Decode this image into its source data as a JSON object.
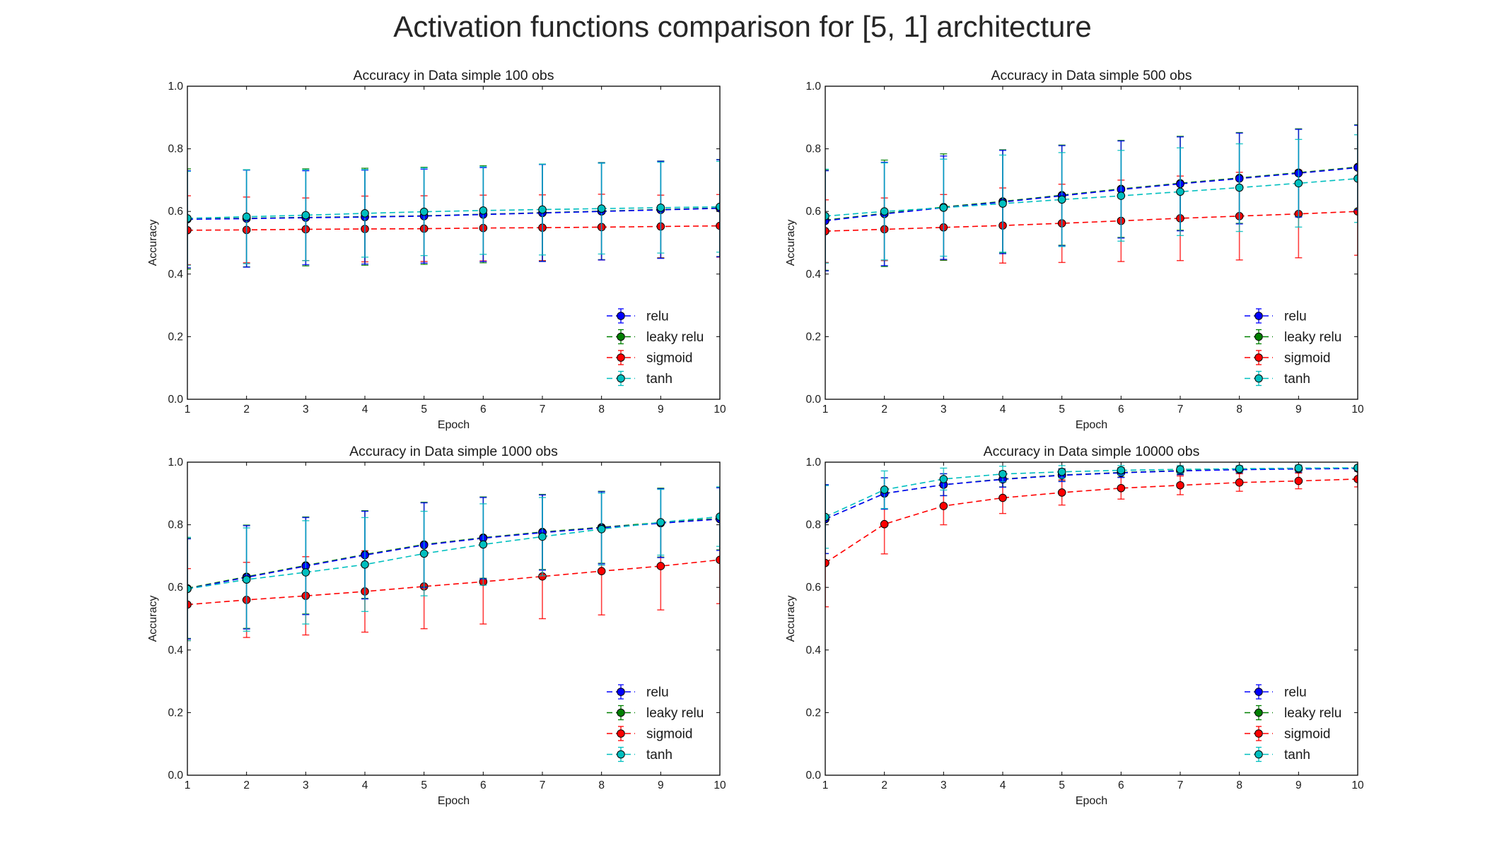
{
  "figure_title": "Activation functions comparison for [5, 1] architecture",
  "chart_data": [
    {
      "type": "line",
      "title": "Accuracy in Data simple 100 obs",
      "xlabel": "Epoch",
      "ylabel": "Accuracy",
      "xlim": [
        1,
        10
      ],
      "ylim": [
        0.0,
        1.0
      ],
      "xticks": [
        "1",
        "2",
        "3",
        "4",
        "5",
        "6",
        "7",
        "8",
        "9",
        "10"
      ],
      "yticks": [
        "0.0",
        "0.2",
        "0.4",
        "0.6",
        "0.8",
        "1.0"
      ],
      "x": [
        1,
        2,
        3,
        4,
        5,
        6,
        7,
        8,
        9,
        10
      ],
      "legend_position": "lower-right",
      "series": [
        {
          "name": "relu",
          "color": "#0000ff",
          "values": [
            0.575,
            0.577,
            0.58,
            0.582,
            0.585,
            0.59,
            0.595,
            0.6,
            0.605,
            0.61
          ],
          "errors": [
            0.155,
            0.155,
            0.15,
            0.15,
            0.15,
            0.15,
            0.155,
            0.155,
            0.155,
            0.155
          ]
        },
        {
          "name": "leaky relu",
          "color": "#008000",
          "values": [
            0.576,
            0.578,
            0.581,
            0.583,
            0.586,
            0.591,
            0.596,
            0.601,
            0.606,
            0.611
          ],
          "errors": [
            0.16,
            0.155,
            0.155,
            0.155,
            0.155,
            0.155,
            0.155,
            0.155,
            0.155,
            0.155
          ]
        },
        {
          "name": "sigmoid",
          "color": "#ff0000",
          "values": [
            0.54,
            0.541,
            0.543,
            0.544,
            0.545,
            0.547,
            0.548,
            0.55,
            0.552,
            0.554
          ],
          "errors": [
            0.11,
            0.105,
            0.1,
            0.105,
            0.105,
            0.105,
            0.105,
            0.105,
            0.1,
            0.1
          ]
        },
        {
          "name": "tanh",
          "color": "#00bfbf",
          "values": [
            0.578,
            0.583,
            0.588,
            0.594,
            0.599,
            0.603,
            0.606,
            0.609,
            0.612,
            0.615
          ],
          "errors": [
            0.15,
            0.15,
            0.145,
            0.14,
            0.14,
            0.14,
            0.145,
            0.145,
            0.145,
            0.145
          ]
        }
      ]
    },
    {
      "type": "line",
      "title": "Accuracy in Data simple 500 obs",
      "xlabel": "Epoch",
      "ylabel": "Accuracy",
      "xlim": [
        1,
        10
      ],
      "ylim": [
        0.0,
        1.0
      ],
      "xticks": [
        "1",
        "2",
        "3",
        "4",
        "5",
        "6",
        "7",
        "8",
        "9",
        "10"
      ],
      "yticks": [
        "0.0",
        "0.2",
        "0.4",
        "0.6",
        "0.8",
        "1.0"
      ],
      "x": [
        1,
        2,
        3,
        4,
        5,
        6,
        7,
        8,
        9,
        10
      ],
      "legend_position": "lower-right",
      "series": [
        {
          "name": "relu",
          "color": "#0000ff",
          "values": [
            0.57,
            0.592,
            0.612,
            0.63,
            0.65,
            0.67,
            0.688,
            0.705,
            0.722,
            0.74
          ],
          "errors": [
            0.16,
            0.165,
            0.165,
            0.165,
            0.16,
            0.155,
            0.15,
            0.145,
            0.14,
            0.135
          ]
        },
        {
          "name": "leaky relu",
          "color": "#008000",
          "values": [
            0.572,
            0.594,
            0.614,
            0.632,
            0.652,
            0.672,
            0.69,
            0.707,
            0.724,
            0.742
          ],
          "errors": [
            0.16,
            0.17,
            0.17,
            0.165,
            0.16,
            0.155,
            0.15,
            0.145,
            0.14,
            0.135
          ]
        },
        {
          "name": "sigmoid",
          "color": "#ff0000",
          "values": [
            0.537,
            0.543,
            0.549,
            0.555,
            0.562,
            0.57,
            0.578,
            0.585,
            0.592,
            0.6
          ],
          "errors": [
            0.1,
            0.1,
            0.105,
            0.12,
            0.125,
            0.13,
            0.135,
            0.14,
            0.14,
            0.14
          ]
        },
        {
          "name": "tanh",
          "color": "#00bfbf",
          "values": [
            0.585,
            0.6,
            0.612,
            0.625,
            0.638,
            0.65,
            0.663,
            0.676,
            0.69,
            0.705
          ],
          "errors": [
            0.15,
            0.155,
            0.155,
            0.155,
            0.15,
            0.145,
            0.14,
            0.14,
            0.14,
            0.14
          ]
        }
      ]
    },
    {
      "type": "line",
      "title": "Accuracy in Data simple 1000 obs",
      "xlabel": "Epoch",
      "ylabel": "Accuracy",
      "xlim": [
        1,
        10
      ],
      "ylim": [
        0.0,
        1.0
      ],
      "xticks": [
        "1",
        "2",
        "3",
        "4",
        "5",
        "6",
        "7",
        "8",
        "9",
        "10"
      ],
      "yticks": [
        "0.0",
        "0.2",
        "0.4",
        "0.6",
        "0.8",
        "1.0"
      ],
      "x": [
        1,
        2,
        3,
        4,
        5,
        6,
        7,
        8,
        9,
        10
      ],
      "legend_position": "lower-right",
      "series": [
        {
          "name": "relu",
          "color": "#0000ff",
          "values": [
            0.595,
            0.632,
            0.668,
            0.703,
            0.735,
            0.757,
            0.775,
            0.79,
            0.805,
            0.818
          ],
          "errors": [
            0.16,
            0.165,
            0.155,
            0.14,
            0.135,
            0.13,
            0.12,
            0.115,
            0.11,
            0.1
          ]
        },
        {
          "name": "leaky relu",
          "color": "#008000",
          "values": [
            0.597,
            0.634,
            0.67,
            0.705,
            0.737,
            0.759,
            0.777,
            0.792,
            0.807,
            0.82
          ],
          "errors": [
            0.16,
            0.165,
            0.155,
            0.14,
            0.135,
            0.13,
            0.12,
            0.115,
            0.11,
            0.1
          ]
        },
        {
          "name": "sigmoid",
          "color": "#ff0000",
          "values": [
            0.545,
            0.56,
            0.573,
            0.587,
            0.603,
            0.618,
            0.635,
            0.652,
            0.668,
            0.688
          ],
          "errors": [
            0.115,
            0.12,
            0.125,
            0.13,
            0.135,
            0.135,
            0.135,
            0.14,
            0.14,
            0.14
          ]
        },
        {
          "name": "tanh",
          "color": "#00bfbf",
          "values": [
            0.595,
            0.625,
            0.648,
            0.673,
            0.708,
            0.737,
            0.762,
            0.786,
            0.808,
            0.826
          ],
          "errors": [
            0.165,
            0.165,
            0.165,
            0.15,
            0.135,
            0.13,
            0.125,
            0.115,
            0.105,
            0.095
          ]
        }
      ]
    },
    {
      "type": "line",
      "title": "Accuracy in Data simple 10000 obs",
      "xlabel": "Epoch",
      "ylabel": "Accuracy",
      "xlim": [
        1,
        10
      ],
      "ylim": [
        0.0,
        1.0
      ],
      "xticks": [
        "1",
        "2",
        "3",
        "4",
        "5",
        "6",
        "7",
        "8",
        "9",
        "10"
      ],
      "yticks": [
        "0.0",
        "0.2",
        "0.4",
        "0.6",
        "0.8",
        "1.0"
      ],
      "x": [
        1,
        2,
        3,
        4,
        5,
        6,
        7,
        8,
        9,
        10
      ],
      "legend_position": "lower-right",
      "series": [
        {
          "name": "relu",
          "color": "#0000ff",
          "values": [
            0.818,
            0.9,
            0.928,
            0.945,
            0.958,
            0.966,
            0.972,
            0.976,
            0.978,
            0.98
          ],
          "errors": [
            0.11,
            0.05,
            0.035,
            0.025,
            0.02,
            0.015,
            0.012,
            0.01,
            0.01,
            0.008
          ]
        },
        {
          "name": "leaky relu",
          "color": "#008000",
          "values": [
            0.818,
            0.9,
            0.928,
            0.946,
            0.959,
            0.967,
            0.973,
            0.977,
            0.979,
            0.981
          ],
          "errors": [
            0.11,
            0.05,
            0.035,
            0.025,
            0.02,
            0.015,
            0.012,
            0.01,
            0.01,
            0.008
          ]
        },
        {
          "name": "sigmoid",
          "color": "#ff0000",
          "values": [
            0.678,
            0.802,
            0.86,
            0.886,
            0.903,
            0.917,
            0.926,
            0.935,
            0.94,
            0.946
          ],
          "errors": [
            0.14,
            0.095,
            0.06,
            0.05,
            0.04,
            0.035,
            0.03,
            0.028,
            0.025,
            0.025
          ]
        },
        {
          "name": "tanh",
          "color": "#00bfbf",
          "values": [
            0.825,
            0.912,
            0.946,
            0.962,
            0.969,
            0.974,
            0.977,
            0.979,
            0.981,
            0.982
          ],
          "errors": [
            0.1,
            0.06,
            0.035,
            0.025,
            0.02,
            0.015,
            0.012,
            0.01,
            0.01,
            0.008
          ]
        }
      ]
    }
  ]
}
